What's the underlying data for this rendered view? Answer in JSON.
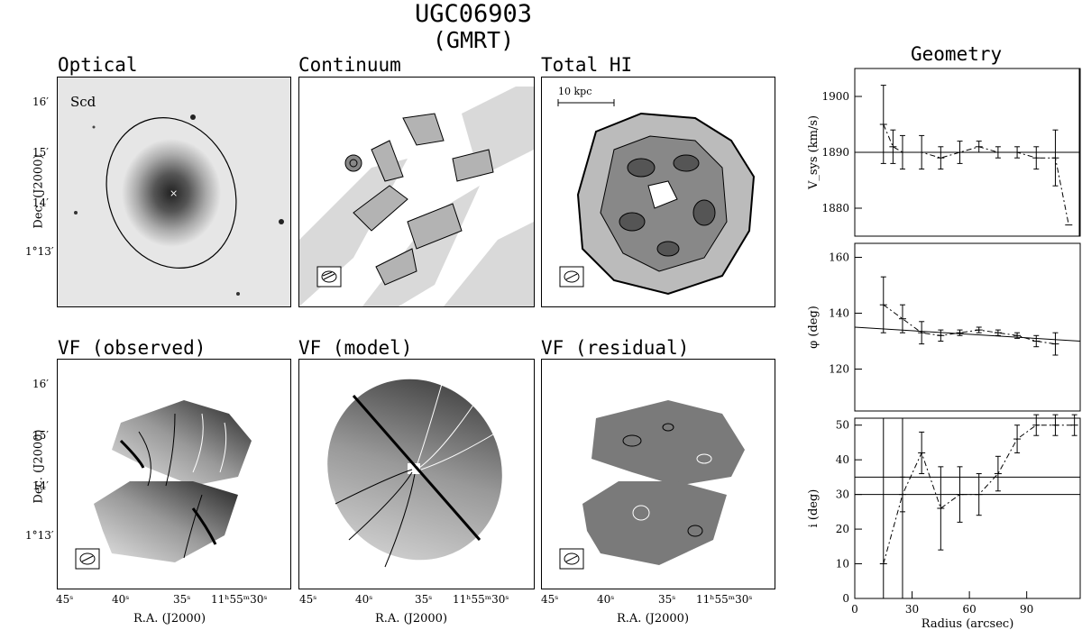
{
  "figure": {
    "title": "UGC06903",
    "subtitle": "(GMRT)"
  },
  "panels": {
    "optical": {
      "title": "Optical",
      "label": "Scd"
    },
    "continuum": {
      "title": "Continuum"
    },
    "total_hi": {
      "title": "Total HI",
      "scale_bar": "10 kpc"
    },
    "vf_observed": {
      "title": "VF (observed)"
    },
    "vf_model": {
      "title": "VF (model)"
    },
    "vf_residual": {
      "title": "VF (residual)"
    },
    "geometry": {
      "title": "Geometry"
    }
  },
  "sky_axes": {
    "dec_label": "Dec. (J2000)",
    "ra_label": "R.A. (J2000)",
    "dec_ticks": [
      "16′",
      "15′",
      "14′",
      "1°13′"
    ],
    "ra_ticks": [
      "45ˢ",
      "40ˢ",
      "35ˢ",
      "11ʰ55ᵐ30ˢ"
    ]
  },
  "chart_data": [
    {
      "type": "line",
      "panel": "vsys",
      "ylabel": "V_sys (km/s)",
      "ylim": [
        1875,
        1905
      ],
      "yticks": [
        1880,
        1890,
        1900
      ],
      "xlim": [
        0,
        118
      ],
      "series": [
        {
          "x": [
            15,
            20,
            25,
            35,
            45,
            55,
            65,
            75,
            85,
            95,
            105,
            112
          ],
          "y": [
            1895,
            1891,
            1890,
            1890,
            1889,
            1890,
            1891,
            1890,
            1890,
            1889,
            1889,
            1877
          ],
          "err": [
            7,
            3,
            3,
            3,
            2,
            2,
            1,
            1,
            1,
            2,
            5,
            0
          ]
        }
      ],
      "reference_lines": {
        "horizontal": [
          1890
        ],
        "vertical": [
          118
        ]
      }
    },
    {
      "type": "line",
      "panel": "phi",
      "ylabel": "φ (deg)",
      "ylim": [
        105,
        165
      ],
      "yticks": [
        120,
        140,
        160
      ],
      "xlim": [
        0,
        118
      ],
      "series": [
        {
          "x": [
            15,
            25,
            35,
            45,
            55,
            65,
            75,
            85,
            95,
            105
          ],
          "y": [
            143,
            138,
            133,
            132,
            133,
            134,
            133,
            132,
            130,
            129
          ],
          "err": [
            10,
            5,
            4,
            2,
            1,
            1,
            1,
            1,
            2,
            4
          ]
        }
      ],
      "trend_line": {
        "x": [
          0,
          118
        ],
        "y": [
          135,
          130
        ]
      }
    },
    {
      "type": "line",
      "panel": "inclination",
      "ylabel": "i (deg)",
      "xlabel": "Radius (arcsec)",
      "ylim": [
        0,
        52
      ],
      "yticks": [
        0,
        10,
        20,
        30,
        40,
        50
      ],
      "xlim": [
        0,
        118
      ],
      "xticks": [
        0,
        30,
        60,
        90
      ],
      "series": [
        {
          "x": [
            15,
            25,
            35,
            45,
            55,
            65,
            75,
            85,
            95,
            105,
            115
          ],
          "y": [
            10,
            30,
            42,
            26,
            30,
            30,
            36,
            46,
            50,
            50,
            50
          ],
          "err": [
            0,
            5,
            6,
            12,
            8,
            6,
            5,
            4,
            3,
            3,
            3
          ]
        }
      ],
      "reference_lines": {
        "horizontal": [
          30,
          35
        ],
        "vertical": [
          15,
          25
        ]
      }
    }
  ]
}
